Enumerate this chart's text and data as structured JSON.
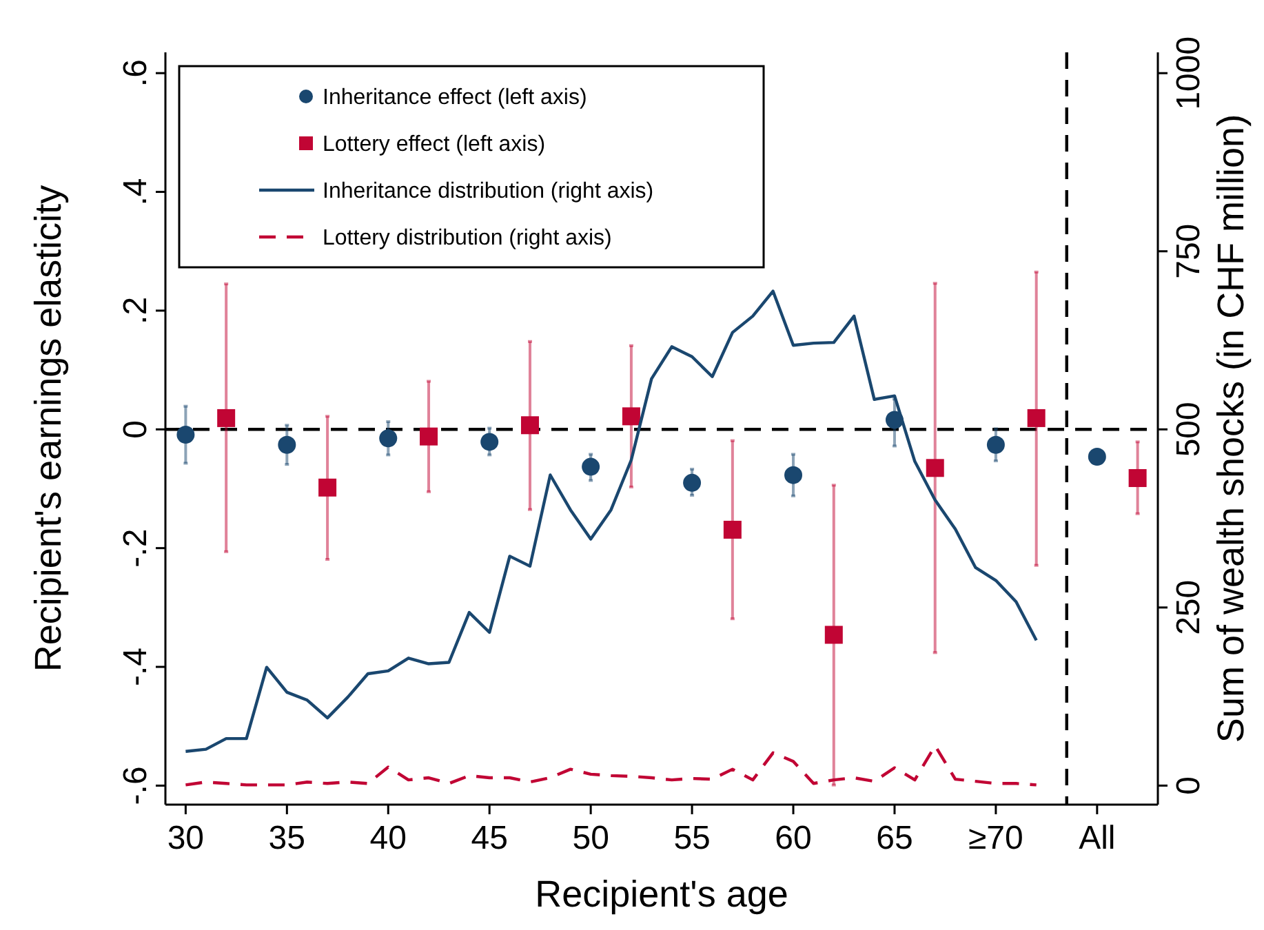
{
  "chart_data": {
    "type": "scatter",
    "xlabel": "Recipient's age",
    "ylabel": "Recipient's earnings elasticity",
    "y2label": "Sum of wealth shocks (in CHF million)",
    "xlim": [
      29,
      78
    ],
    "xticks": [
      30,
      35,
      40,
      45,
      50,
      55,
      60,
      65,
      {
        "value": 70,
        "label": "≥70"
      },
      {
        "value": 75,
        "label": "All"
      }
    ],
    "ylim": [
      -0.632,
      0.635
    ],
    "yticks": [
      {
        "value": -0.6,
        "label": "-.6"
      },
      {
        "value": -0.4,
        "label": "-.4"
      },
      {
        "value": -0.2,
        "label": "-.2"
      },
      0,
      {
        "value": 0.2,
        "label": ".2"
      },
      {
        "value": 0.4,
        "label": ".4"
      },
      {
        "value": 0.6,
        "label": ".6"
      }
    ],
    "y2lim": [
      -26.7,
      1029.2
    ],
    "y2ticks": [
      0,
      250,
      500,
      750,
      1000
    ],
    "legend": "top left",
    "grid": false,
    "ref_lines": [
      {
        "axis": "y",
        "value": 0,
        "color": "#000000",
        "line_style": "dashed"
      },
      {
        "axis": "x",
        "value": 73.5,
        "color": "#000000",
        "line_style": "dashed"
      }
    ],
    "series": [
      {
        "name": "Inheritance effect (left axis)",
        "marker": "circle",
        "color": "#1a476f",
        "x": [
          30,
          35,
          40,
          45,
          50,
          55,
          60,
          65,
          70,
          75
        ],
        "values": [
          -0.009,
          -0.026,
          -0.015,
          -0.021,
          -0.063,
          -0.09,
          -0.077,
          0.016,
          -0.026,
          -0.046
        ],
        "errors": [
          [
            -0.057,
            0.039
          ],
          [
            -0.059,
            0.007
          ],
          [
            -0.043,
            0.013
          ],
          [
            -0.043,
            0.002
          ],
          [
            -0.086,
            -0.042
          ],
          [
            -0.111,
            -0.067
          ],
          [
            -0.112,
            -0.042
          ],
          [
            -0.028,
            0.051
          ],
          [
            -0.053,
            0.001
          ],
          null
        ]
      },
      {
        "name": "Lottery effect (left axis)",
        "marker": "square",
        "color": "#c10534",
        "x": [
          32,
          37,
          42,
          47,
          52,
          57,
          62,
          67,
          72,
          77
        ],
        "values": [
          0.019,
          -0.098,
          -0.012,
          0.007,
          0.022,
          -0.169,
          -0.346,
          -0.065,
          0.019,
          -0.082
        ],
        "errors": [
          [
            -0.206,
            0.245
          ],
          [
            -0.219,
            0.022
          ],
          [
            -0.105,
            0.081
          ],
          [
            -0.135,
            0.148
          ],
          [
            -0.097,
            0.141
          ],
          [
            -0.319,
            -0.019
          ],
          [
            -0.599,
            -0.094
          ],
          [
            -0.376,
            0.246
          ],
          [
            -0.229,
            0.265
          ],
          [
            -0.142,
            -0.021
          ]
        ]
      },
      {
        "name": "Inheritance distribution (right axis)",
        "type": "line",
        "axis": "y2",
        "line_style": "solid",
        "color": "#1a476f",
        "x": [
          30,
          31,
          32,
          33,
          34,
          35,
          36,
          37,
          38,
          39,
          40,
          41,
          42,
          43,
          44,
          45,
          46,
          47,
          48,
          49,
          50,
          51,
          52,
          53,
          54,
          55,
          56,
          57,
          58,
          59,
          60,
          61,
          62,
          63,
          64,
          65,
          66,
          67,
          68,
          69,
          70,
          71,
          72
        ],
        "values": [
          48,
          51,
          66,
          66,
          166,
          131,
          120,
          95,
          124,
          157,
          161,
          179,
          171,
          173,
          243,
          215,
          322,
          308,
          436,
          387,
          346,
          387,
          457,
          571,
          616,
          602,
          574,
          636,
          659,
          694,
          618,
          621,
          622,
          659,
          542,
          547,
          455,
          401,
          360,
          306,
          288,
          258,
          204
        ]
      },
      {
        "name": "Lottery distribution (right axis)",
        "type": "line",
        "axis": "y2",
        "line_style": "dashed",
        "color": "#c10534",
        "x": [
          30,
          31,
          32,
          33,
          34,
          35,
          36,
          37,
          38,
          39,
          40,
          41,
          42,
          43,
          44,
          45,
          46,
          47,
          48,
          49,
          50,
          51,
          52,
          53,
          54,
          55,
          56,
          57,
          58,
          59,
          60,
          61,
          62,
          63,
          64,
          65,
          66,
          67,
          68,
          69,
          70,
          71,
          72
        ],
        "values": [
          1,
          5,
          3,
          1,
          1,
          1,
          5,
          3,
          5,
          3,
          26,
          8,
          11,
          3,
          14,
          11,
          11,
          5,
          11,
          23,
          16,
          14,
          13,
          11,
          8,
          10,
          9,
          23,
          8,
          46,
          34,
          3,
          8,
          11,
          6,
          25,
          8,
          56,
          9,
          6,
          3,
          3,
          1
        ]
      }
    ]
  }
}
